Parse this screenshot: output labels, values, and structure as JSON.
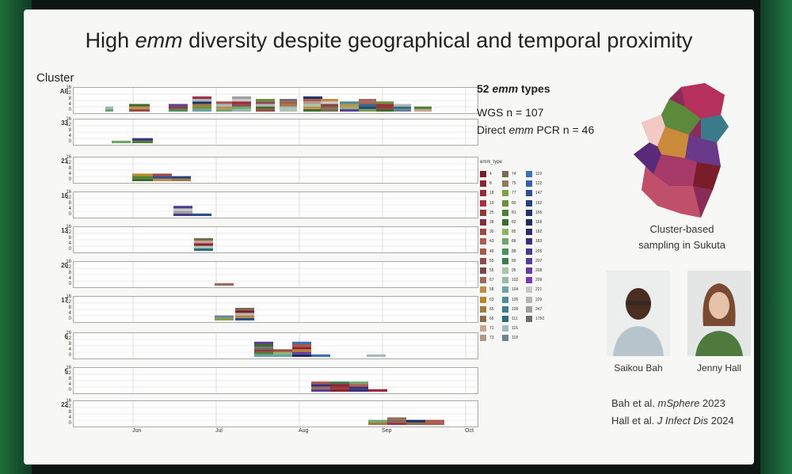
{
  "slide": {
    "title_prefix": "High ",
    "title_italic": "emm",
    "title_suffix": " diversity despite geographical and temporal proximity",
    "cluster_header": "Cluster",
    "months": [
      "Jun",
      "Jul",
      "Aug",
      "Sep",
      "Oct"
    ],
    "y_ticks": [
      "16",
      "12",
      "8",
      "4",
      "0"
    ],
    "panels": [
      {
        "label": "All"
      },
      {
        "label": "33"
      },
      {
        "label": "21"
      },
      {
        "label": "16"
      },
      {
        "label": "13"
      },
      {
        "label": "20"
      },
      {
        "label": "17"
      },
      {
        "label": "6"
      },
      {
        "label": "5"
      },
      {
        "label": "22"
      }
    ],
    "info": {
      "types_bold": "52 ",
      "types_italic": "emm",
      "types_suffix": " types",
      "wgs": "WGS n = 107",
      "pcr_prefix": "Direct ",
      "pcr_italic": "emm",
      "pcr_suffix": " PCR n = 46"
    },
    "legend": {
      "title": "emm_type",
      "col1": [
        "4",
        "8",
        "18",
        "19",
        "25",
        "28",
        "30",
        "43",
        "49",
        "55",
        "56",
        "67",
        "58",
        "63",
        "65",
        "66",
        "71",
        "73"
      ],
      "col2": [
        "74",
        "75",
        "77",
        "80",
        "81",
        "82",
        "85",
        "86",
        "88",
        "89",
        "95",
        "102",
        "104",
        "105",
        "109",
        "111",
        "116",
        "118"
      ],
      "col3": [
        "119",
        "122",
        "147",
        "162",
        "165",
        "169",
        "182",
        "183",
        "205",
        "207",
        "208",
        "209",
        "221",
        "229",
        "247",
        "1750"
      ],
      "colors1": [
        "#7a1d2a",
        "#8e2233",
        "#9b2a38",
        "#a33342",
        "#8f3a3a",
        "#7d3037",
        "#9d4a46",
        "#b05a50",
        "#a6584a",
        "#8c4a4f",
        "#7e4550",
        "#9a6a5a",
        "#c08d48",
        "#b9862e",
        "#a47a3a",
        "#8d6a4a",
        "#c7a591",
        "#b49887"
      ],
      "colors2": [
        "#7a6a52",
        "#8a7a5e",
        "#7da24a",
        "#6c8f3c",
        "#4f7f34",
        "#3d6b2b",
        "#8db46a",
        "#6ea56e",
        "#4a8e5a",
        "#3c7b50",
        "#a9c6a8",
        "#9ab8b0",
        "#6aa3a8",
        "#4e8d96",
        "#3e7d8a",
        "#2f6b80",
        "#a6b8c2",
        "#6e8294"
      ],
      "colors3": [
        "#3e6fb0",
        "#3a5fa6",
        "#2e4e90",
        "#27417c",
        "#1f3568",
        "#1a2d5c",
        "#2a2a6e",
        "#3a2f7a",
        "#4b3a8c",
        "#5a3f96",
        "#6a3aa0",
        "#7a3db0",
        "#c9c9c9",
        "#b5b5b5",
        "#9e9e9e",
        "#6f6f6f"
      ]
    },
    "map_caption_1": "Cluster-based",
    "map_caption_2": "sampling in Sukuta",
    "people": [
      "Saikou Bah",
      "Jenny Hall"
    ],
    "cite1_prefix": "Bah et al. ",
    "cite1_italic": "mSphere",
    "cite1_suffix": " 2023",
    "cite2_prefix": "Hall et al. ",
    "cite2_italic": "J Infect Dis",
    "cite2_suffix": " 2024"
  }
}
